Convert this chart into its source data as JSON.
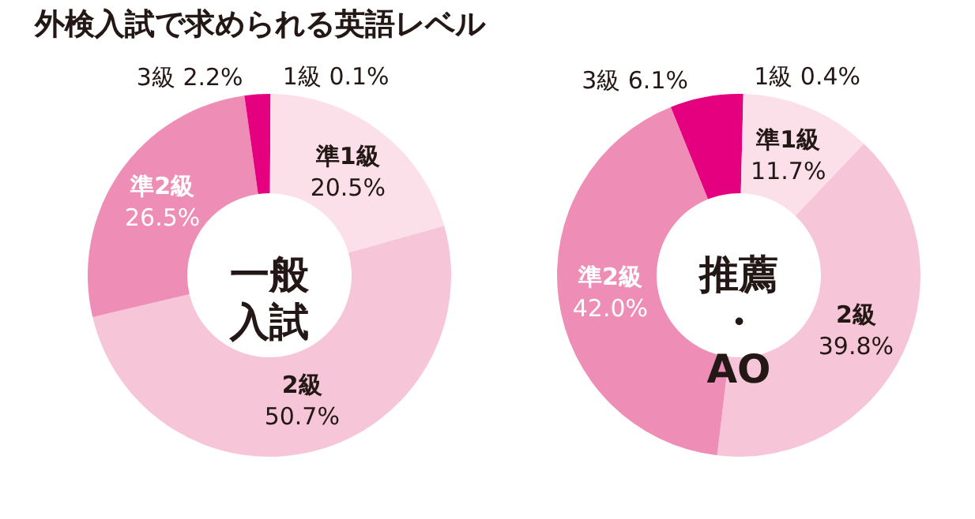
{
  "chart_data": [
    {
      "type": "donut",
      "title": "一般入試",
      "annotations": [
        "外検入試で求められる英語レベル"
      ],
      "categories": [
        "1級",
        "準1級",
        "2級",
        "準2級",
        "3級"
      ],
      "values": [
        0.1,
        20.5,
        50.7,
        26.5,
        2.2
      ],
      "value_labels": [
        "0.1%",
        "20.5%",
        "50.7%",
        "26.5%",
        "2.2%"
      ],
      "colors": [
        "#e4007f",
        "#fbe0ea",
        "#f6c5d7",
        "#ee8db5",
        "#e4007f"
      ]
    },
    {
      "type": "donut",
      "title": "推薦・AO",
      "categories": [
        "1級",
        "準1級",
        "2級",
        "準2級",
        "3級"
      ],
      "values": [
        0.4,
        11.7,
        39.8,
        42.0,
        6.1
      ],
      "value_labels": [
        "0.4%",
        "11.7%",
        "39.8%",
        "42.0%",
        "6.1%"
      ],
      "colors": [
        "#e4007f",
        "#fbe0ea",
        "#f6c5d7",
        "#ee8db5",
        "#e4007f"
      ]
    }
  ]
}
